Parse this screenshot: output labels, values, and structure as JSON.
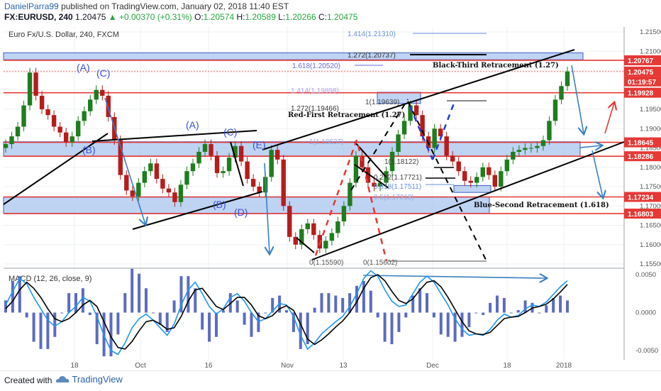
{
  "header": {
    "author": "DanielParra99",
    "published_text": "published on TradingView.com, January 02, 2018 11:40 EST",
    "symbol": "FX:EURUSD, 240",
    "price": "1.20475",
    "change": "▲ +0.00370 (+0.31%)",
    "o_label": "O:",
    "o_value": "1.20574",
    "h_label": "H:",
    "h_value": "1.20589",
    "l_label": "L:",
    "l_value": "1.20266",
    "c_label": "C:",
    "c_value": "1.20475"
  },
  "footer": {
    "created_with": "Created with",
    "brand": "TradingView"
  },
  "chart_data": [
    {
      "type": "candlestick",
      "title": "Euro Fx/U.S. Dollar, 240, FXCM",
      "ylim": [
        1.553,
        1.2175
      ],
      "y_ticks": [
        "1.21500",
        "1.21000",
        "1.20500",
        "1.20000",
        "1.19500",
        "1.19000",
        "1.18500",
        "1.18000",
        "1.17500",
        "1.17000",
        "1.16500",
        "1.16000",
        "1.15500"
      ],
      "x_ticks": [
        "18",
        "Oct",
        "16",
        "Nov",
        "13",
        "Dec",
        "18",
        "2018"
      ],
      "price_labels": [
        {
          "text": "1.20767",
          "price": 1.20767,
          "color": "#e53935"
        },
        {
          "text": "1.20475",
          "price": 1.20475,
          "color": "#e53935"
        },
        {
          "text": "01:19:57",
          "price": 1.2022,
          "color": "#e53935"
        },
        {
          "text": "1.19928",
          "price": 1.19928,
          "color": "#e53935"
        },
        {
          "text": "1.18645",
          "price": 1.18645,
          "color": "#e53935"
        },
        {
          "text": "1.18286",
          "price": 1.18286,
          "color": "#e53935"
        },
        {
          "text": "1.17234",
          "price": 1.17234,
          "color": "#e53935"
        },
        {
          "text": "1.16803",
          "price": 1.16803,
          "color": "#e53935"
        }
      ],
      "zones": [
        {
          "name": "top-zone",
          "p1": 1.2096,
          "p2": 1.2078
        },
        {
          "name": "upper-mid-zone",
          "p1": 1.1866,
          "p2": 1.1829
        },
        {
          "name": "lower-zone",
          "p1": 1.1723,
          "p2": 1.1681
        },
        {
          "name": "small-zone-1",
          "p1": 1.1994,
          "p2": 1.1965
        },
        {
          "name": "small-zone-2",
          "p1": 1.1753,
          "p2": 1.1735
        }
      ],
      "fib_labels": [
        {
          "text": "1.414(1.21310)",
          "price": 1.2131,
          "color": "#6a8fd8"
        },
        {
          "text": "1.272(1.20737)",
          "price": 1.20737,
          "color": "#333333"
        },
        {
          "text": "1.618(1.20520)",
          "price": 1.2052,
          "color": "#6a6ad8"
        },
        {
          "text": "1.414(1.19898)",
          "price": 1.19898,
          "color": "#b0a0e8"
        },
        {
          "text": "1(1.19639)",
          "price": 1.19639,
          "color": "#444444"
        },
        {
          "text": "1.272(1.19466)",
          "price": 1.19466,
          "color": "#333333"
        },
        {
          "text": "1(1.18637)",
          "price": 1.18637,
          "color": "#9aa6d8"
        },
        {
          "text": "1(1.18122)",
          "price": 1.18122,
          "color": "#444444"
        },
        {
          "text": "0.272(1.17721)",
          "price": 1.17721,
          "color": "#444444"
        },
        {
          "text": "0.618(1.17511)",
          "price": 1.17511,
          "color": "#6a8fd8"
        },
        {
          "text": "0.5(1.17218)",
          "price": 1.17218,
          "color": "#9aa6d8"
        },
        {
          "text": "0(1.15590)",
          "price": 1.1559,
          "color": "#555555"
        },
        {
          "text": "0(1.15602)",
          "price": 1.15602,
          "color": "#555555"
        }
      ],
      "annotations": [
        {
          "text": "Black-Third Retracement (1.27)",
          "color": "#111111"
        },
        {
          "text": "Red-First Retracement (1.27)",
          "color": "#111111"
        },
        {
          "text": "Blue-Second  Retracement (1.618)",
          "color": "#111111"
        }
      ],
      "wave_labels": [
        "(A)",
        "(C)",
        "(B)",
        "(A)",
        "(C)",
        "(E)",
        "(B)",
        "(D)"
      ],
      "close_series": [
        1.186,
        1.188,
        1.1905,
        1.196,
        1.2045,
        1.1985,
        1.195,
        1.1935,
        1.1905,
        1.189,
        1.1865,
        1.188,
        1.192,
        1.1945,
        1.1975,
        1.2,
        1.1985,
        1.193,
        1.187,
        1.178,
        1.174,
        1.1725,
        1.176,
        1.179,
        1.181,
        1.177,
        1.1745,
        1.1735,
        1.171,
        1.1755,
        1.179,
        1.181,
        1.184,
        1.186,
        1.183,
        1.1785,
        1.179,
        1.1825,
        1.1855,
        1.1815,
        1.177,
        1.175,
        1.1735,
        1.1775,
        1.1845,
        1.182,
        1.17,
        1.162,
        1.16,
        1.164,
        1.1655,
        1.1625,
        1.159,
        1.161,
        1.163,
        1.166,
        1.17,
        1.176,
        1.183,
        1.18,
        1.176,
        1.175,
        1.176,
        1.179,
        1.184,
        1.1885,
        1.192,
        1.196,
        1.1935,
        1.188,
        1.185,
        1.19,
        1.188,
        1.183,
        1.1815,
        1.179,
        1.1765,
        1.176,
        1.1775,
        1.18,
        1.178,
        1.175,
        1.179,
        1.182,
        1.184,
        1.1845,
        1.185,
        1.185,
        1.1855,
        1.187,
        1.192,
        1.1975,
        1.201,
        1.2048
      ]
    },
    {
      "type": "line",
      "title": "MACD (12, 26, close, 9)",
      "ylim": [
        0.0058,
        -0.0062
      ],
      "y_ticks": [
        "0.0050",
        "0.0000",
        "-0.0050"
      ],
      "series": [
        {
          "name": "",
          "color": "#2196f3",
          "values": [
            0.001,
            0.0028,
            0.0045,
            0.0038,
            0.002,
            0.0005,
            -0.001,
            -0.0018,
            -0.0012,
            0.0,
            0.0008,
            0.002,
            0.0015,
            -0.0005,
            -0.003,
            -0.005,
            -0.0055,
            -0.004,
            -0.002,
            -0.0008,
            -0.0002,
            -0.001,
            -0.002,
            -0.003,
            -0.0015,
            0.001,
            0.003,
            0.004,
            0.0025,
            0.0008,
            -0.0002,
            0.0005,
            0.002,
            0.0025,
            0.0015,
            0.0,
            -0.0012,
            -0.0008,
            0.0002,
            0.0012,
            0.001,
            -0.0005,
            -0.003,
            -0.0048,
            -0.004,
            -0.0028,
            -0.002,
            -0.0012,
            -0.0005,
            0.0008,
            0.0025,
            0.0045,
            0.0055,
            0.0048,
            0.003,
            0.0015,
            0.0008,
            0.001,
            0.0025,
            0.004,
            0.0048,
            0.004,
            0.0025,
            0.001,
            -0.0008,
            -0.0022,
            -0.003,
            -0.0028,
            -0.003,
            -0.0022,
            -0.001,
            -0.0002,
            -0.0006,
            -0.0004,
            0.0005,
            0.001,
            0.0008,
            0.0014,
            0.0024,
            0.0034,
            0.0042
          ]
        },
        {
          "name": "",
          "color": "#000000",
          "values": [
            0.0005,
            0.0015,
            0.003,
            0.004,
            0.0032,
            0.002,
            0.0005,
            -0.0008,
            -0.0012,
            -0.0008,
            0.0,
            0.001,
            0.0016,
            0.0008,
            -0.0012,
            -0.0032,
            -0.0046,
            -0.0048,
            -0.0038,
            -0.0024,
            -0.0012,
            -0.001,
            -0.0015,
            -0.0022,
            -0.002,
            -0.0005,
            0.0015,
            0.003,
            0.0032,
            0.002,
            0.0008,
            0.0004,
            0.0012,
            0.002,
            0.002,
            0.001,
            -0.0004,
            -0.0008,
            -0.0004,
            0.0005,
            0.0009,
            0.0003,
            -0.0015,
            -0.0035,
            -0.0042,
            -0.0036,
            -0.0028,
            -0.0019,
            -0.0011,
            0.0,
            0.0014,
            0.0032,
            0.0046,
            0.005,
            0.0042,
            0.0028,
            0.0016,
            0.0012,
            0.0018,
            0.003,
            0.004,
            0.0042,
            0.0034,
            0.002,
            0.0004,
            -0.0012,
            -0.0024,
            -0.0028,
            -0.0029,
            -0.0026,
            -0.0017,
            -0.0008,
            -0.0006,
            -0.0005,
            0.0,
            0.0006,
            0.0008,
            0.0011,
            0.0018,
            0.0027,
            0.0037
          ]
        }
      ]
    }
  ]
}
